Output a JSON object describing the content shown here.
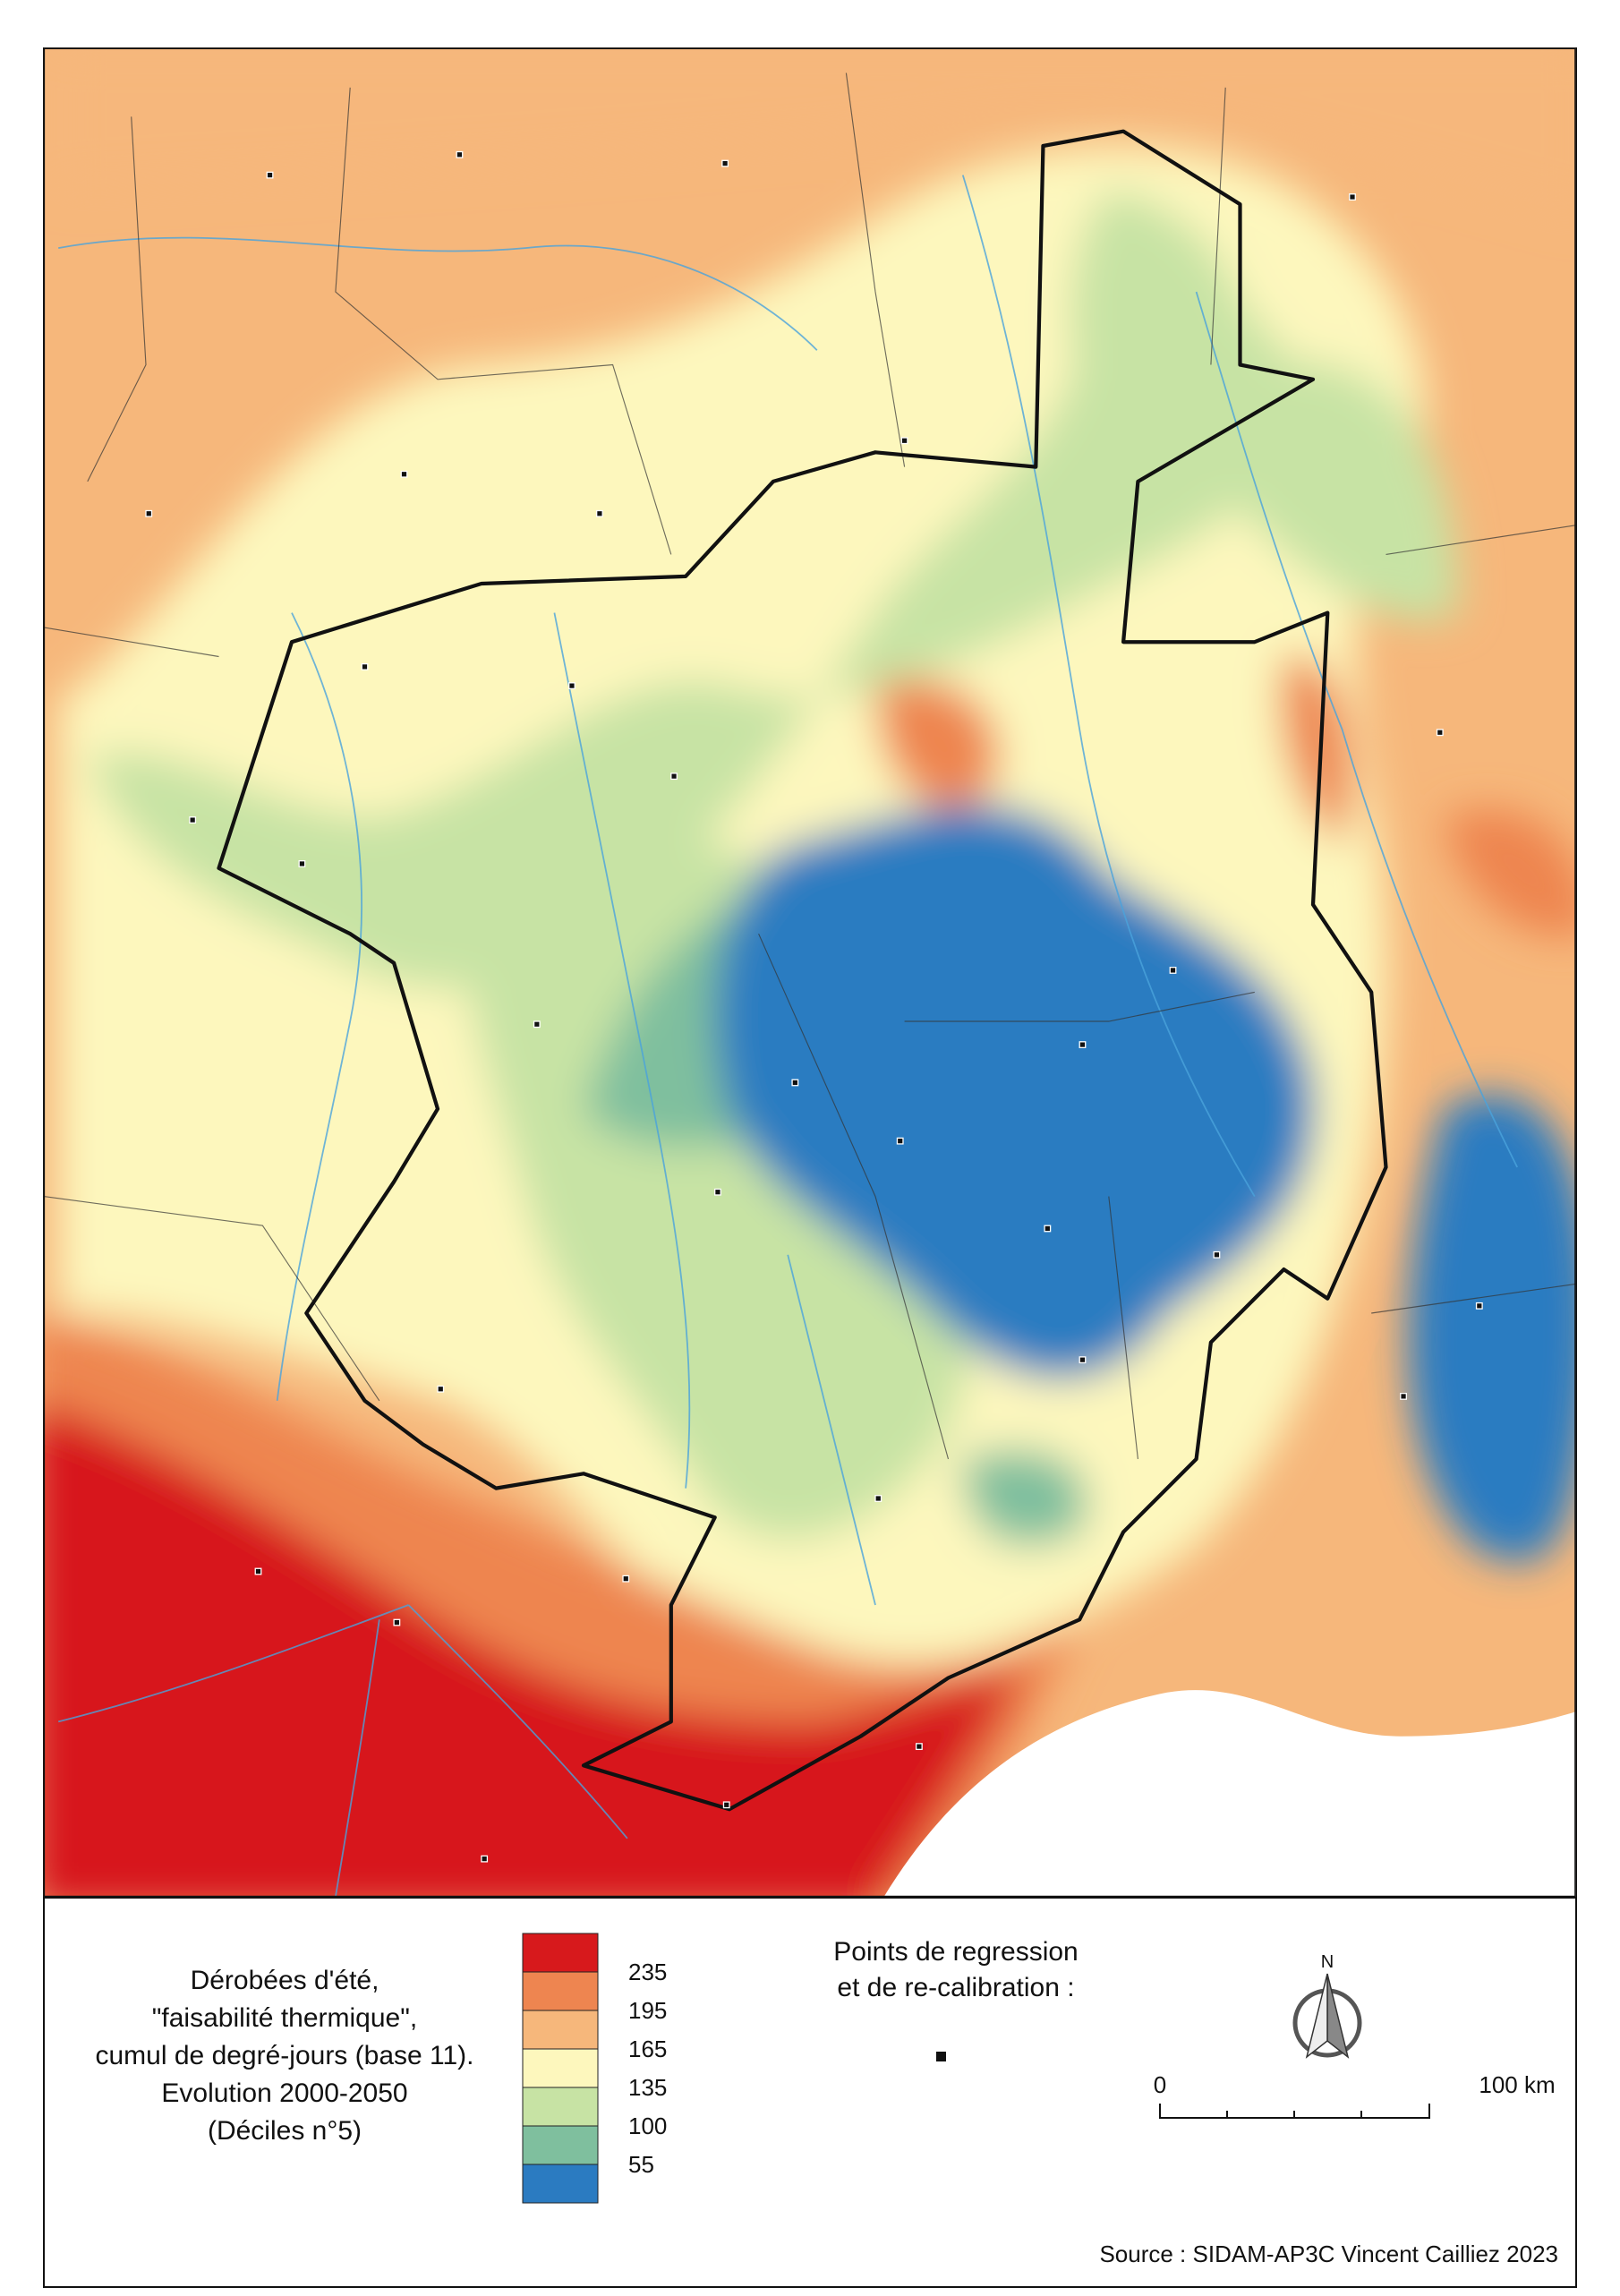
{
  "legend": {
    "title_lines": [
      "Dérobées d'été,",
      "\"faisabilité thermique\",",
      "cumul de degré-jours (base 11).",
      "Evolution 2000-2050",
      "(Déciles n°5)"
    ],
    "classes": [
      {
        "color": "#d7191c"
      },
      {
        "color": "#ee8550"
      },
      {
        "color": "#f6b77b"
      },
      {
        "color": "#fdf7bd"
      },
      {
        "color": "#c7e3a4"
      },
      {
        "color": "#7fbf9e"
      },
      {
        "color": "#2b7bc1"
      }
    ],
    "breaks": [
      "235",
      "195",
      "165",
      "135",
      "100",
      "55"
    ]
  },
  "points_legend": {
    "lines": [
      "Points de regression",
      "et de re-calibration :"
    ]
  },
  "north": "N",
  "scale": {
    "start": "0",
    "end": "100 km"
  },
  "source": "Source : SIDAM-AP3C Vincent Cailliez 2023"
}
